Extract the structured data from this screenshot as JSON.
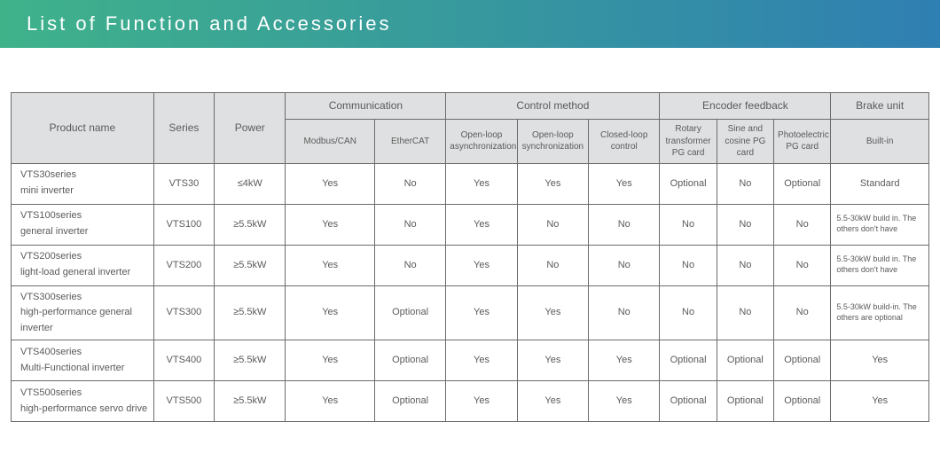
{
  "title": "List of Function and Accessories",
  "title_gradient": {
    "from": "#3fb28a",
    "to": "#2f7fb2"
  },
  "table": {
    "border_color": "#6b6b6b",
    "header_bg": "#dfe0e1",
    "text_color": "#5a5a5a",
    "type": "table",
    "groups": {
      "product_name": "Product name",
      "series": "Series",
      "power": "Power",
      "communication": "Communication",
      "control_method": "Control method",
      "encoder_feedback": "Encoder feedback",
      "brake_unit": "Brake unit"
    },
    "sub": {
      "modbus_can": "Modbus/CAN",
      "ethercat": "EtherCAT",
      "open_async": "Open-loop asynchronization",
      "open_sync": "Open-loop synchronization",
      "closed_loop": "Closed-loop control",
      "rotary_pg": "Rotary transformer PG card",
      "sincos_pg": "Sine and cosine PG card",
      "photo_pg": "Photoelectric PG card",
      "built_in": "Built-in"
    },
    "rows": [
      {
        "name": "VTS30series\nmini inverter",
        "series": "VTS30",
        "power": "≤4kW",
        "modbus": "Yes",
        "ethercat": "No",
        "open_async": "Yes",
        "open_sync": "Yes",
        "closed": "Yes",
        "rotary": "Optional",
        "sincos": "No",
        "photo": "Optional",
        "brake": "Standard",
        "brake_small": false
      },
      {
        "name": "VTS100series\ngeneral inverter",
        "series": "VTS100",
        "power": "≥5.5kW",
        "modbus": "Yes",
        "ethercat": "No",
        "open_async": "Yes",
        "open_sync": "No",
        "closed": "No",
        "rotary": "No",
        "sincos": "No",
        "photo": "No",
        "brake": "5.5-30kW build in. The others don't have",
        "brake_small": true
      },
      {
        "name": "VTS200series\nlight-load general inverter",
        "series": "VTS200",
        "power": "≥5.5kW",
        "modbus": "Yes",
        "ethercat": "No",
        "open_async": "Yes",
        "open_sync": "No",
        "closed": "No",
        "rotary": "No",
        "sincos": "No",
        "photo": "No",
        "brake": "5.5-30kW build in. The others don't have",
        "brake_small": true
      },
      {
        "name": "VTS300series\nhigh-performance general inverter",
        "series": "VTS300",
        "power": "≥5.5kW",
        "modbus": "Yes",
        "ethercat": "Optional",
        "open_async": "Yes",
        "open_sync": "Yes",
        "closed": "No",
        "rotary": "No",
        "sincos": "No",
        "photo": "No",
        "brake": "5.5-30kW build-in. The others are optional",
        "brake_small": true
      },
      {
        "name": "VTS400series\nMulti-Functional inverter",
        "series": "VTS400",
        "power": "≥5.5kW",
        "modbus": "Yes",
        "ethercat": "Optional",
        "open_async": "Yes",
        "open_sync": "Yes",
        "closed": "Yes",
        "rotary": "Optional",
        "sincos": "Optional",
        "photo": "Optional",
        "brake": "Yes",
        "brake_small": false
      },
      {
        "name": "VTS500series\nhigh-performance servo drive",
        "series": "VTS500",
        "power": "≥5.5kW",
        "modbus": "Yes",
        "ethercat": "Optional",
        "open_async": "Yes",
        "open_sync": "Yes",
        "closed": "Yes",
        "rotary": "Optional",
        "sincos": "Optional",
        "photo": "Optional",
        "brake": "Yes",
        "brake_small": false
      }
    ]
  }
}
